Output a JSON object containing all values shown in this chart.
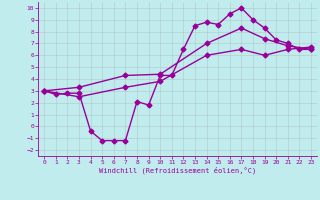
{
  "xlabel": "Windchill (Refroidissement éolien,°C)",
  "background_color": "#c0ecee",
  "grid_color": "#b0c8ca",
  "line_color": "#990099",
  "xlim": [
    -0.5,
    23.5
  ],
  "ylim": [
    -2.5,
    10.5
  ],
  "xticks": [
    0,
    1,
    2,
    3,
    4,
    5,
    6,
    7,
    8,
    9,
    10,
    11,
    12,
    13,
    14,
    15,
    16,
    17,
    18,
    19,
    20,
    21,
    22,
    23
  ],
  "yticks": [
    -2,
    -1,
    0,
    1,
    2,
    3,
    4,
    5,
    6,
    7,
    8,
    9,
    10
  ],
  "line1_x": [
    0,
    1,
    2,
    3,
    4,
    5,
    6,
    7,
    8,
    9,
    10,
    11,
    12,
    13,
    14,
    15,
    16,
    17,
    18,
    19,
    20,
    21,
    22,
    23
  ],
  "line1_y": [
    3.0,
    2.7,
    2.8,
    2.8,
    -0.4,
    -1.2,
    -1.2,
    -1.2,
    2.1,
    1.8,
    4.3,
    4.3,
    6.5,
    8.5,
    8.8,
    8.6,
    9.5,
    10.0,
    9.0,
    8.3,
    7.3,
    7.0,
    6.5,
    6.5
  ],
  "line2_x": [
    0,
    3,
    7,
    10,
    14,
    17,
    19,
    21,
    23
  ],
  "line2_y": [
    3.0,
    3.3,
    4.3,
    4.4,
    7.0,
    8.3,
    7.4,
    6.8,
    6.5
  ],
  "line3_x": [
    0,
    3,
    7,
    10,
    14,
    17,
    19,
    21,
    23
  ],
  "line3_y": [
    3.0,
    2.5,
    3.3,
    3.8,
    6.0,
    6.5,
    6.0,
    6.5,
    6.7
  ],
  "marker": "D",
  "markersize": 2.5,
  "linewidth": 1.0
}
